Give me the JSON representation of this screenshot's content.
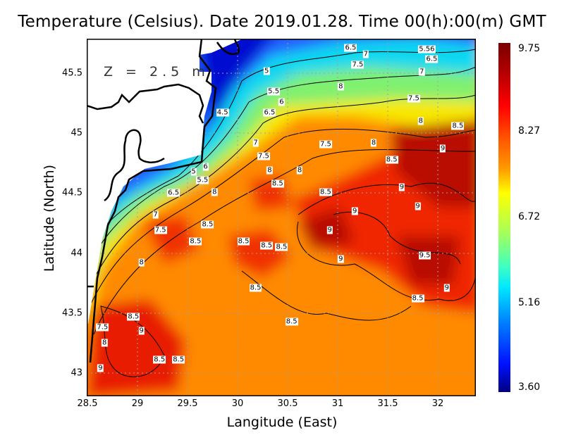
{
  "title": "Temperature (Celsius). Date 2019.01.28. Time 00(h):00(m) GMT",
  "depth_label": "Z = 2.5 m",
  "x_axis": {
    "label": "Langitude (East)",
    "ticks": [
      "28.5",
      "29",
      "29.5",
      "30",
      "30.5",
      "31",
      "31.5",
      "32"
    ],
    "tick_values": [
      28.5,
      29,
      29.5,
      30,
      30.5,
      31,
      31.5,
      32
    ],
    "range": [
      28.5,
      32.38
    ]
  },
  "y_axis": {
    "label": "Latitude (North)",
    "ticks": [
      "45.5",
      "45",
      "44.5",
      "44",
      "43.5",
      "43"
    ],
    "tick_values": [
      45.5,
      45,
      44.5,
      44,
      43.5,
      43
    ],
    "range": [
      42.81,
      45.79
    ]
  },
  "colorbar": {
    "labels": [
      "9.75",
      "8.27",
      "6.72",
      "5.16",
      "3.60"
    ],
    "values": [
      9.75,
      8.27,
      6.72,
      5.16,
      3.6
    ],
    "min": 3.6,
    "max": 9.75
  },
  "chart_data": {
    "type": "heatmap",
    "title": "Temperature (Celsius). Date 2019.01.28. Time 00(h):00(m) GMT",
    "xlabel": "Langitude (East)",
    "ylabel": "Latitude (North)",
    "xlim": [
      28.5,
      32.38
    ],
    "ylim": [
      42.81,
      45.79
    ],
    "grid": true,
    "colorbar_range": [
      3.6,
      9.75
    ],
    "contour_labels": [
      {
        "text": "6.5",
        "lon": 31.13,
        "lat": 45.71
      },
      {
        "text": "5.56",
        "lon": 31.89,
        "lat": 45.7
      },
      {
        "text": "6.5",
        "lon": 31.94,
        "lat": 45.62
      },
      {
        "text": "7.5",
        "lon": 31.2,
        "lat": 45.57
      },
      {
        "text": "7",
        "lon": 31.28,
        "lat": 45.59
      },
      {
        "text": "5",
        "lon": 30.29,
        "lat": 45.52
      },
      {
        "text": "7",
        "lon": 31.84,
        "lat": 45.51
      },
      {
        "text": "8",
        "lon": 31.03,
        "lat": 45.39
      },
      {
        "text": "5.5",
        "lon": 30.36,
        "lat": 45.35
      },
      {
        "text": "6",
        "lon": 30.44,
        "lat": 45.26
      },
      {
        "text": "7.5",
        "lon": 31.76,
        "lat": 45.29
      },
      {
        "text": "4.5",
        "lon": 29.85,
        "lat": 45.17
      },
      {
        "text": "6.5",
        "lon": 30.32,
        "lat": 45.17
      },
      {
        "text": "8",
        "lon": 31.83,
        "lat": 45.1
      },
      {
        "text": "8.5",
        "lon": 32.2,
        "lat": 45.06
      },
      {
        "text": "7",
        "lon": 30.18,
        "lat": 44.92
      },
      {
        "text": "7.5",
        "lon": 30.26,
        "lat": 44.88
      },
      {
        "text": "7.5",
        "lon": 30.88,
        "lat": 44.91
      },
      {
        "text": "8",
        "lon": 31.36,
        "lat": 44.92
      },
      {
        "text": "9",
        "lon": 32.05,
        "lat": 44.87
      },
      {
        "text": "8",
        "lon": 30.32,
        "lat": 44.76
      },
      {
        "text": "8",
        "lon": 30.62,
        "lat": 44.69
      },
      {
        "text": "8.5",
        "lon": 31.54,
        "lat": 44.78
      },
      {
        "text": "5",
        "lon": 29.56,
        "lat": 44.68
      },
      {
        "text": "5.5",
        "lon": 29.65,
        "lat": 44.68
      },
      {
        "text": "6",
        "lon": 29.68,
        "lat": 44.65
      },
      {
        "text": "6.5",
        "lon": 29.36,
        "lat": 44.5
      },
      {
        "text": "8",
        "lon": 29.77,
        "lat": 44.51
      },
      {
        "text": "8.5",
        "lon": 30.4,
        "lat": 44.58
      },
      {
        "text": "8.5",
        "lon": 30.88,
        "lat": 44.51
      },
      {
        "text": "9",
        "lon": 31.64,
        "lat": 44.55
      },
      {
        "text": "9",
        "lon": 31.17,
        "lat": 44.35
      },
      {
        "text": "9",
        "lon": 31.8,
        "lat": 44.39
      },
      {
        "text": "7",
        "lon": 29.18,
        "lat": 44.32
      },
      {
        "text": "7.5",
        "lon": 29.23,
        "lat": 44.26
      },
      {
        "text": "8.5",
        "lon": 29.7,
        "lat": 44.24
      },
      {
        "text": "9",
        "lon": 30.92,
        "lat": 44.19
      },
      {
        "text": "8.5",
        "lon": 29.58,
        "lat": 44.1
      },
      {
        "text": "8.5",
        "lon": 30.06,
        "lat": 44.1
      },
      {
        "text": "8.5",
        "lon": 30.29,
        "lat": 44.06
      },
      {
        "text": "8.5",
        "lon": 30.44,
        "lat": 44.05
      },
      {
        "text": "9",
        "lon": 31.03,
        "lat": 43.95
      },
      {
        "text": "9.5",
        "lon": 31.87,
        "lat": 43.98
      },
      {
        "text": "8",
        "lon": 29.04,
        "lat": 43.92
      },
      {
        "text": "9",
        "lon": 32.09,
        "lat": 43.71
      },
      {
        "text": "8.5",
        "lon": 30.18,
        "lat": 43.71
      },
      {
        "text": "8.5",
        "lon": 31.8,
        "lat": 43.62
      },
      {
        "text": "8.5",
        "lon": 30.54,
        "lat": 43.43
      },
      {
        "text": "8.5",
        "lon": 28.96,
        "lat": 43.47
      },
      {
        "text": "7.5",
        "lon": 28.65,
        "lat": 43.38
      },
      {
        "text": "9",
        "lon": 29.04,
        "lat": 43.35
      },
      {
        "text": "8",
        "lon": 28.67,
        "lat": 43.32
      },
      {
        "text": "8.5",
        "lon": 29.22,
        "lat": 43.11
      },
      {
        "text": "8.5",
        "lon": 29.41,
        "lat": 43.11
      },
      {
        "text": "9",
        "lon": 28.63,
        "lat": 43.04
      }
    ]
  }
}
